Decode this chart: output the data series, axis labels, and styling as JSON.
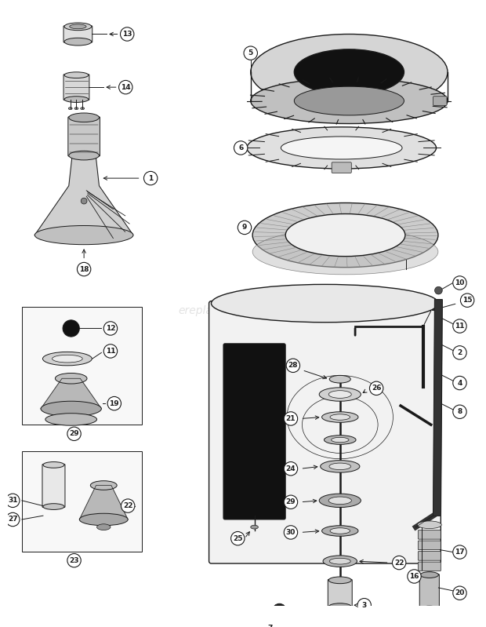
{
  "bg_color": "#ffffff",
  "line_color": "#1a1a1a",
  "watermark": "ereplacementparts.com",
  "fig_w": 6.2,
  "fig_h": 7.99,
  "dpi": 100
}
